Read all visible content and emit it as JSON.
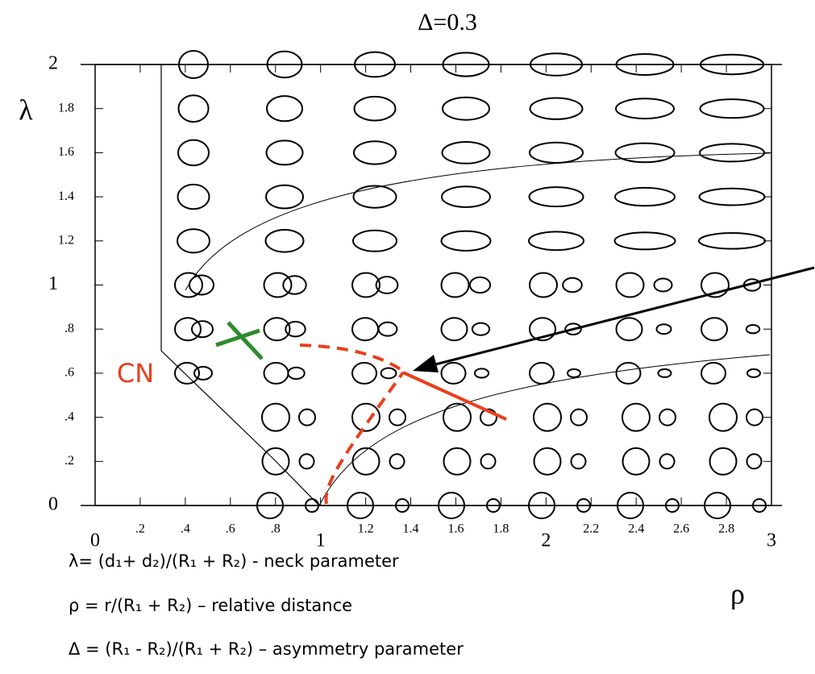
{
  "chart_data": {
    "type": "shape-map",
    "title": "Δ=0.3",
    "x_label": "ρ",
    "y_label": "λ",
    "annotation": "CN",
    "xlim": [
      0,
      3
    ],
    "ylim": [
      0,
      2
    ],
    "xticks": [
      0,
      {
        "value": 0.2,
        "label": ".2"
      },
      {
        "value": 0.4,
        "label": ".4"
      },
      {
        "value": 0.6,
        "label": ".6"
      },
      {
        "value": 0.8,
        "label": ".8"
      },
      1,
      1.2,
      1.4,
      1.6,
      1.8,
      2,
      2.2,
      2.4,
      2.6,
      2.8,
      3
    ],
    "yticks": [
      0,
      {
        "value": 0.2,
        "label": ".2"
      },
      {
        "value": 0.4,
        "label": ".4"
      },
      {
        "value": 0.6,
        "label": ".6"
      },
      {
        "value": 0.8,
        "label": ".8"
      },
      1,
      1.2,
      1.4,
      1.6,
      1.8,
      2
    ],
    "definitions": [
      "λ= (d₁+ d₂)/(R₁ + R₂)  - neck parameter",
      "ρ = r/(R₁ + R₂) – relative distance",
      "Δ = (R₁  - R₂)/(R₁ + R₂) – asymmetry parameter"
    ]
  }
}
